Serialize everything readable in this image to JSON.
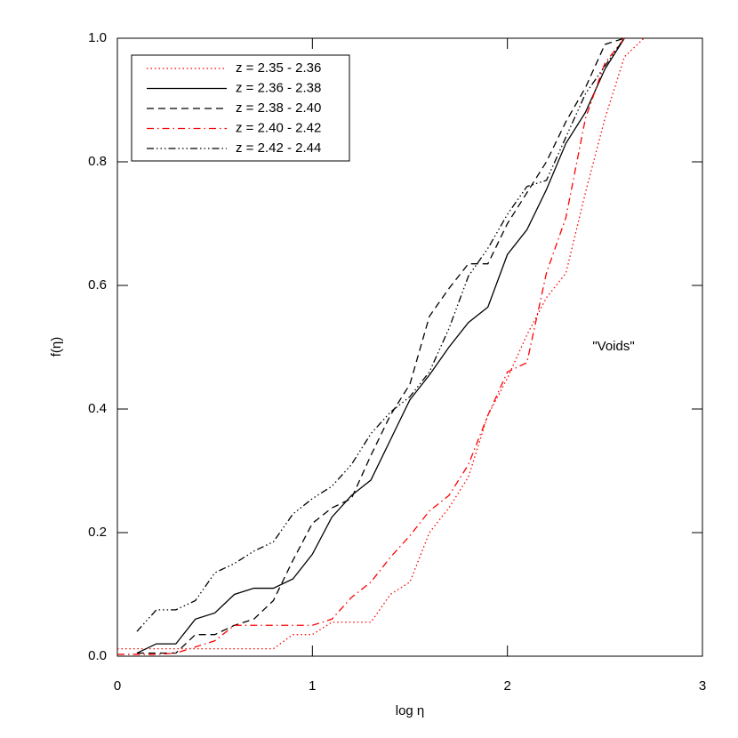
{
  "chart_data": {
    "type": "line",
    "x_label": "log η",
    "y_label": "f(η)",
    "x": [
      0,
      0.1,
      0.2,
      0.3,
      0.4,
      0.5,
      0.6,
      0.7,
      0.8,
      0.9,
      1.0,
      1.1,
      1.2,
      1.3,
      1.4,
      1.5,
      1.6,
      1.7,
      1.8,
      1.9,
      2.0,
      2.1,
      2.2,
      2.3,
      2.4,
      2.5,
      2.6,
      2.7
    ],
    "series": [
      {
        "name": "z = 2.35 - 2.36",
        "color": "#ff0000",
        "dash": "dotted",
        "values": [
          0.012,
          0.012,
          0.012,
          0.012,
          0.012,
          0.012,
          0.012,
          0.012,
          0.012,
          0.035,
          0.035,
          0.055,
          0.055,
          0.055,
          0.1,
          0.12,
          0.2,
          0.24,
          0.29,
          0.39,
          0.45,
          0.52,
          0.58,
          0.62,
          0.75,
          0.87,
          0.97,
          1.0
        ]
      },
      {
        "name": "z = 2.36 - 2.38",
        "color": "#000000",
        "dash": "solid",
        "values": [
          null,
          0.005,
          0.02,
          0.02,
          0.06,
          0.07,
          0.1,
          0.11,
          0.11,
          0.125,
          0.165,
          0.225,
          0.26,
          0.285,
          0.35,
          0.415,
          0.455,
          0.5,
          0.54,
          0.565,
          0.65,
          0.69,
          0.755,
          0.83,
          0.88,
          0.95,
          1.0,
          null
        ]
      },
      {
        "name": "z = 2.38 - 2.40",
        "color": "#000000",
        "dash": "dashed",
        "values": [
          null,
          0.005,
          0.005,
          0.005,
          0.035,
          0.035,
          0.05,
          0.06,
          0.09,
          0.155,
          0.215,
          0.24,
          0.255,
          0.325,
          0.39,
          0.44,
          0.55,
          0.595,
          0.635,
          0.635,
          0.7,
          0.75,
          0.8,
          0.865,
          0.92,
          0.99,
          1.0,
          null
        ]
      },
      {
        "name": "z = 2.40 - 2.42",
        "color": "#ff0000",
        "dash": "dashdot",
        "values": [
          0.003,
          0.003,
          0.003,
          0.005,
          0.015,
          0.025,
          0.05,
          0.05,
          0.05,
          0.05,
          0.05,
          0.06,
          0.095,
          0.12,
          0.16,
          0.195,
          0.235,
          0.26,
          0.31,
          0.39,
          0.46,
          0.475,
          0.62,
          0.71,
          0.87,
          0.96,
          1.0,
          null
        ]
      },
      {
        "name": "z = 2.42 - 2.44",
        "color": "#000000",
        "dash": "dashdotdot",
        "values": [
          null,
          0.04,
          0.075,
          0.075,
          0.09,
          0.135,
          0.15,
          0.17,
          0.185,
          0.23,
          0.255,
          0.275,
          0.31,
          0.36,
          0.395,
          0.42,
          0.46,
          0.53,
          0.615,
          0.66,
          0.715,
          0.76,
          0.77,
          0.84,
          0.91,
          0.955,
          1.0,
          null
        ]
      }
    ],
    "annotation": "\"Voids\"",
    "annotation_color": "#ff0000",
    "xlim": [
      0,
      3
    ],
    "xticks": [
      0,
      1,
      2,
      3
    ],
    "ylim": [
      0,
      1
    ],
    "yticks": [
      {
        "value": 0,
        "label": "0.0"
      },
      0.2,
      0.4,
      0.6,
      0.8,
      {
        "value": 1,
        "label": "1.0"
      }
    ],
    "legend": "upper left",
    "grid": false
  }
}
